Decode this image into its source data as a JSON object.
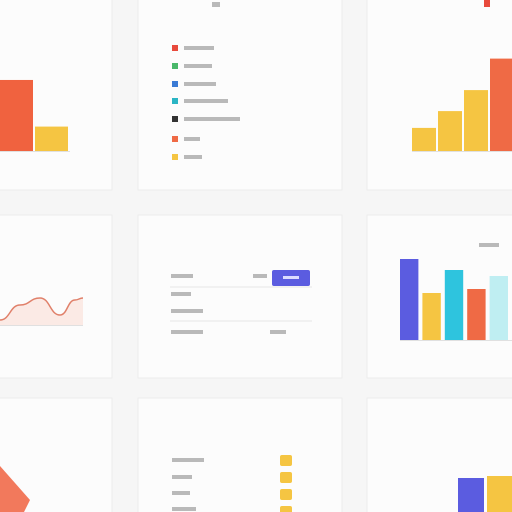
{
  "chart_data": [
    {
      "type": "bar",
      "categories": [
        null,
        null
      ],
      "values": [
        64,
        22
      ],
      "colors": [
        "#f0623f",
        "#f5c542"
      ],
      "ylim": [
        0,
        100
      ]
    },
    {
      "type": "bar",
      "categories": [
        null,
        null,
        null,
        null
      ],
      "values": [
        22,
        38,
        58,
        88
      ],
      "colors": [
        "#f5c542",
        "#f5c542",
        "#f5c542",
        "#ef6a45"
      ],
      "ylim": [
        0,
        100
      ]
    },
    {
      "type": "line",
      "x": [
        0,
        20,
        40,
        60,
        75,
        83
      ],
      "values": [
        10,
        40,
        54,
        20,
        50,
        54
      ],
      "color": "#e0806a",
      "xlim": [
        0,
        83
      ],
      "ylim": [
        0,
        100
      ]
    },
    {
      "type": "bar",
      "categories": [
        null,
        null,
        null,
        null,
        null
      ],
      "values": [
        81,
        47,
        70,
        51,
        64
      ],
      "colors": [
        "#5b5ce0",
        "#f5c542",
        "#2ec4de",
        "#ef6a45",
        "#bfeef2"
      ],
      "ylim": [
        0,
        100
      ]
    },
    {
      "type": "bar",
      "categories": [
        null,
        null
      ],
      "values": [
        34,
        36
      ],
      "colors": [
        "#5b5ce0",
        "#f5c542"
      ],
      "ylim": [
        0,
        100
      ]
    }
  ]
}
